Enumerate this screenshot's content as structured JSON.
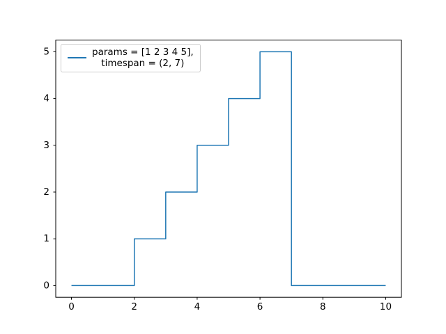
{
  "figure": {
    "background": "#ffffff"
  },
  "chart_data": {
    "type": "line",
    "subtype": "step-post",
    "title": "",
    "xlabel": "",
    "ylabel": "",
    "grid": false,
    "xlim": [
      -0.5,
      10.5
    ],
    "ylim": [
      -0.25,
      5.25
    ],
    "xticks": [
      0,
      2,
      4,
      6,
      8,
      10
    ],
    "yticks": [
      0,
      1,
      2,
      3,
      4,
      5
    ],
    "series": [
      {
        "name": "params = [1 2 3 4 5], timespan = (2, 7)",
        "color": "#1f77b4",
        "step": "post",
        "x": [
          0,
          2,
          3,
          4,
          5,
          6,
          7,
          10
        ],
        "y": [
          0,
          1,
          2,
          3,
          4,
          5,
          0,
          0
        ]
      }
    ],
    "legend": {
      "position": "upper-left",
      "lines": [
        "params = [1 2 3 4 5],",
        "timespan = (2, 7)"
      ]
    }
  },
  "colors": {
    "line": "#1f77b4",
    "axis": "#000000",
    "legend_border": "#cccccc",
    "background": "#ffffff"
  }
}
